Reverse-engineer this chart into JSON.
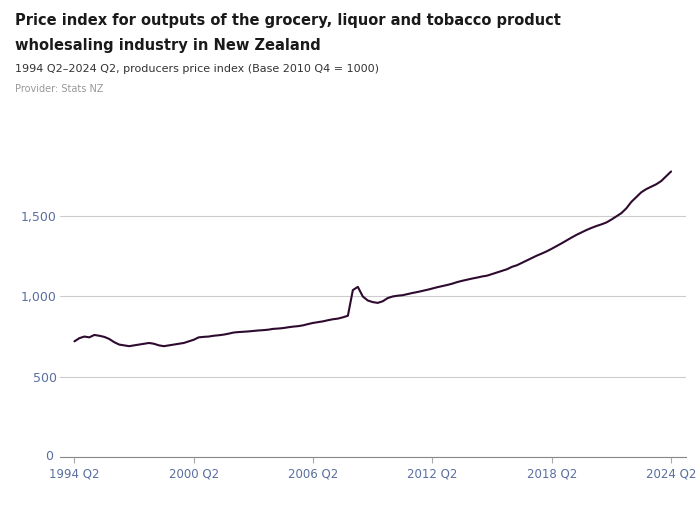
{
  "title_line1": "Price index for outputs of the grocery, liquor and tobacco product",
  "title_line2": "wholesaling industry in New Zealand",
  "subtitle": "1994 Q2–2024 Q2, producers price index (Base 2010 Q4 = 1000)",
  "provider": "Provider: Stats NZ",
  "line_color": "#2d0a2e",
  "bg_color": "#ffffff",
  "grid_color": "#cccccc",
  "axis_color": "#5a6ea0",
  "title_color": "#1a1a1a",
  "subtitle_color": "#333333",
  "provider_color": "#999999",
  "logo_bg": "#5560bb",
  "ylim": [
    0,
    1900
  ],
  "yticks": [
    0,
    500,
    1000,
    1500
  ],
  "xtick_labels": [
    "1994 Q2",
    "2000 Q2",
    "2006 Q2",
    "2012 Q2",
    "2018 Q2",
    "2024 Q2"
  ],
  "xtick_positions": [
    1994.25,
    2000.25,
    2006.25,
    2012.25,
    2018.25,
    2024.25
  ],
  "data": [
    [
      1994.25,
      720
    ],
    [
      1994.5,
      740
    ],
    [
      1994.75,
      750
    ],
    [
      1995.0,
      745
    ],
    [
      1995.25,
      760
    ],
    [
      1995.5,
      755
    ],
    [
      1995.75,
      748
    ],
    [
      1996.0,
      735
    ],
    [
      1996.25,
      715
    ],
    [
      1996.5,
      700
    ],
    [
      1996.75,
      695
    ],
    [
      1997.0,
      690
    ],
    [
      1997.25,
      695
    ],
    [
      1997.5,
      700
    ],
    [
      1997.75,
      705
    ],
    [
      1998.0,
      710
    ],
    [
      1998.25,
      705
    ],
    [
      1998.5,
      695
    ],
    [
      1998.75,
      690
    ],
    [
      1999.0,
      695
    ],
    [
      1999.25,
      700
    ],
    [
      1999.5,
      705
    ],
    [
      1999.75,
      710
    ],
    [
      2000.0,
      720
    ],
    [
      2000.25,
      730
    ],
    [
      2000.5,
      745
    ],
    [
      2000.75,
      748
    ],
    [
      2001.0,
      750
    ],
    [
      2001.25,
      755
    ],
    [
      2001.5,
      758
    ],
    [
      2001.75,
      762
    ],
    [
      2002.0,
      768
    ],
    [
      2002.25,
      775
    ],
    [
      2002.5,
      778
    ],
    [
      2002.75,
      780
    ],
    [
      2003.0,
      782
    ],
    [
      2003.25,
      785
    ],
    [
      2003.5,
      788
    ],
    [
      2003.75,
      790
    ],
    [
      2004.0,
      793
    ],
    [
      2004.25,
      798
    ],
    [
      2004.5,
      800
    ],
    [
      2004.75,
      803
    ],
    [
      2005.0,
      808
    ],
    [
      2005.25,
      812
    ],
    [
      2005.5,
      815
    ],
    [
      2005.75,
      820
    ],
    [
      2006.0,
      828
    ],
    [
      2006.25,
      835
    ],
    [
      2006.5,
      840
    ],
    [
      2006.75,
      845
    ],
    [
      2007.0,
      852
    ],
    [
      2007.25,
      858
    ],
    [
      2007.5,
      862
    ],
    [
      2007.75,
      870
    ],
    [
      2008.0,
      880
    ],
    [
      2008.25,
      1040
    ],
    [
      2008.5,
      1060
    ],
    [
      2008.75,
      1000
    ],
    [
      2009.0,
      975
    ],
    [
      2009.25,
      965
    ],
    [
      2009.5,
      960
    ],
    [
      2009.75,
      970
    ],
    [
      2010.0,
      990
    ],
    [
      2010.25,
      1000
    ],
    [
      2010.5,
      1005
    ],
    [
      2010.75,
      1008
    ],
    [
      2011.0,
      1015
    ],
    [
      2011.25,
      1022
    ],
    [
      2011.5,
      1028
    ],
    [
      2011.75,
      1035
    ],
    [
      2012.0,
      1042
    ],
    [
      2012.25,
      1050
    ],
    [
      2012.5,
      1058
    ],
    [
      2012.75,
      1065
    ],
    [
      2013.0,
      1072
    ],
    [
      2013.25,
      1080
    ],
    [
      2013.5,
      1090
    ],
    [
      2013.75,
      1098
    ],
    [
      2014.0,
      1105
    ],
    [
      2014.25,
      1112
    ],
    [
      2014.5,
      1118
    ],
    [
      2014.75,
      1125
    ],
    [
      2015.0,
      1130
    ],
    [
      2015.25,
      1140
    ],
    [
      2015.5,
      1150
    ],
    [
      2015.75,
      1160
    ],
    [
      2016.0,
      1170
    ],
    [
      2016.25,
      1185
    ],
    [
      2016.5,
      1195
    ],
    [
      2016.75,
      1210
    ],
    [
      2017.0,
      1225
    ],
    [
      2017.25,
      1240
    ],
    [
      2017.5,
      1255
    ],
    [
      2017.75,
      1268
    ],
    [
      2018.0,
      1282
    ],
    [
      2018.25,
      1298
    ],
    [
      2018.5,
      1315
    ],
    [
      2018.75,
      1332
    ],
    [
      2019.0,
      1350
    ],
    [
      2019.25,
      1368
    ],
    [
      2019.5,
      1385
    ],
    [
      2019.75,
      1400
    ],
    [
      2020.0,
      1415
    ],
    [
      2020.25,
      1428
    ],
    [
      2020.5,
      1440
    ],
    [
      2020.75,
      1450
    ],
    [
      2021.0,
      1462
    ],
    [
      2021.25,
      1480
    ],
    [
      2021.5,
      1500
    ],
    [
      2021.75,
      1520
    ],
    [
      2022.0,
      1550
    ],
    [
      2022.25,
      1590
    ],
    [
      2022.5,
      1620
    ],
    [
      2022.75,
      1650
    ],
    [
      2023.0,
      1670
    ],
    [
      2023.25,
      1685
    ],
    [
      2023.5,
      1700
    ],
    [
      2023.75,
      1720
    ],
    [
      2024.0,
      1750
    ],
    [
      2024.25,
      1780
    ]
  ]
}
